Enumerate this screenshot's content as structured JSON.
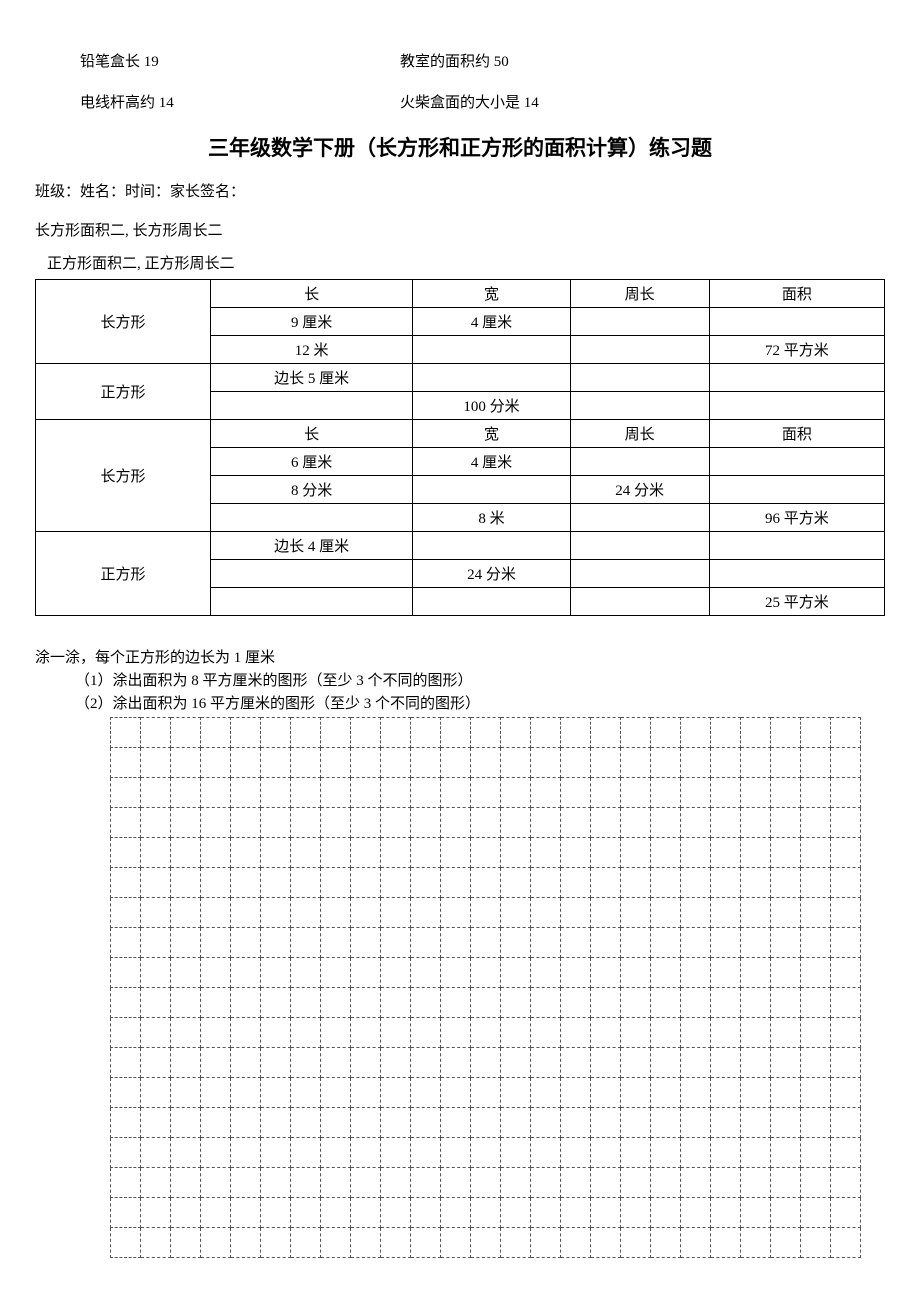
{
  "top": {
    "row1_left": "铅笔盒长 19",
    "row1_right": "教室的面积约 50",
    "row2_left": "电线杆高约 14",
    "row2_right": "火柴盒面的大小是 14"
  },
  "title": "三年级数学下册（长方形和正方形的面积计算）练习题",
  "meta": "班级：姓名：时间：家长签名：",
  "formulas": {
    "line1": "长方形面积二, 长方形周长二",
    "line2": "正方形面积二, 正方形周长二"
  },
  "table": {
    "headers1": [
      "长",
      "宽",
      "周长",
      "面积"
    ],
    "rect1_label": "长方形",
    "rect1_rows": [
      [
        "9 厘米",
        "4 厘米",
        "",
        ""
      ],
      [
        "12 米",
        "",
        "",
        "72 平方米"
      ]
    ],
    "square1_label": "正方形",
    "square1_rows": [
      [
        "边长 5 厘米",
        "",
        "",
        ""
      ],
      [
        "",
        "100 分米",
        "",
        ""
      ]
    ],
    "headers2": [
      "长",
      "宽",
      "周长",
      "面积"
    ],
    "rect2_label": "长方形",
    "rect2_rows": [
      [
        "6 厘米",
        "4 厘米",
        "",
        ""
      ],
      [
        "8 分米",
        "",
        "24 分米",
        ""
      ],
      [
        "",
        "8 米",
        "",
        "96 平方米"
      ]
    ],
    "square2_label": "正方形",
    "square2_rows": [
      [
        "边长 4 厘米",
        "",
        "",
        ""
      ],
      [
        "",
        "24 分米",
        "",
        ""
      ],
      [
        "",
        "",
        "",
        "25 平方米"
      ]
    ]
  },
  "instructions": {
    "intro": "涂一涂，每个正方形的边长为 1 厘米",
    "item1": "（1）涂出面积为 8 平方厘米的图形（至少 3 个不同的图形）",
    "item2": "（2）涂出面积为 16 平方厘米的图形（至少 3 个不同的图形）"
  },
  "grid": {
    "cols": 25,
    "rows": 18
  }
}
